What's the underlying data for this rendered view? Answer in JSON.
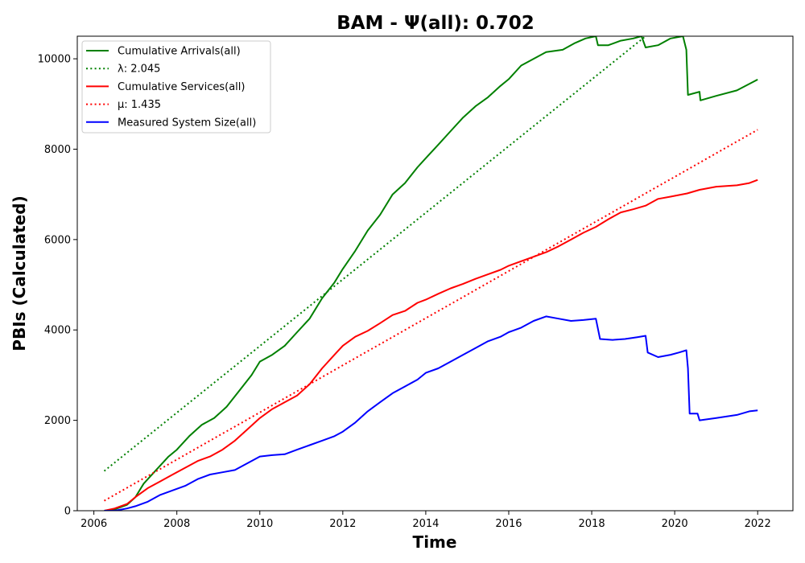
{
  "chart_data": {
    "type": "line",
    "title": "BAM -  Ψ(all): 0.702",
    "xlabel": "Time",
    "ylabel": "PBIs (Calculated)",
    "xlim": [
      2005.6,
      2022.85
    ],
    "ylim": [
      0,
      10500
    ],
    "xticks": [
      2006,
      2008,
      2010,
      2012,
      2014,
      2016,
      2018,
      2020,
      2022
    ],
    "yticks": [
      0,
      2000,
      4000,
      6000,
      8000,
      10000
    ],
    "xtick_labels": [
      "2006",
      "2008",
      "2010",
      "2012",
      "2014",
      "2016",
      "2018",
      "2020",
      "2022"
    ],
    "ytick_labels": [
      "0",
      "2000",
      "4000",
      "6000",
      "8000",
      "10000"
    ],
    "grid": false,
    "legend_position": "top-left",
    "series": [
      {
        "name": "Cumulative Arrivals(all)",
        "color": "#008000",
        "style": "solid",
        "points": [
          [
            2006.25,
            0
          ],
          [
            2006.5,
            30
          ],
          [
            2006.8,
            130
          ],
          [
            2007.0,
            300
          ],
          [
            2007.2,
            600
          ],
          [
            2007.5,
            900
          ],
          [
            2007.8,
            1200
          ],
          [
            2008.0,
            1350
          ],
          [
            2008.3,
            1650
          ],
          [
            2008.6,
            1900
          ],
          [
            2008.9,
            2050
          ],
          [
            2009.2,
            2300
          ],
          [
            2009.5,
            2650
          ],
          [
            2009.8,
            3000
          ],
          [
            2010.0,
            3300
          ],
          [
            2010.3,
            3450
          ],
          [
            2010.6,
            3650
          ],
          [
            2010.9,
            3950
          ],
          [
            2011.2,
            4250
          ],
          [
            2011.5,
            4700
          ],
          [
            2011.8,
            5050
          ],
          [
            2012.0,
            5350
          ],
          [
            2012.3,
            5750
          ],
          [
            2012.6,
            6200
          ],
          [
            2012.9,
            6550
          ],
          [
            2013.2,
            7000
          ],
          [
            2013.5,
            7250
          ],
          [
            2013.8,
            7600
          ],
          [
            2014.0,
            7800
          ],
          [
            2014.3,
            8100
          ],
          [
            2014.6,
            8400
          ],
          [
            2014.9,
            8700
          ],
          [
            2015.2,
            8950
          ],
          [
            2015.5,
            9150
          ],
          [
            2015.8,
            9400
          ],
          [
            2016.0,
            9550
          ],
          [
            2016.3,
            9850
          ],
          [
            2016.6,
            10000
          ],
          [
            2016.9,
            10150
          ],
          [
            2017.3,
            10200
          ],
          [
            2017.6,
            10350
          ],
          [
            2017.85,
            10450
          ],
          [
            2018.1,
            10500
          ],
          [
            2018.15,
            10300
          ],
          [
            2018.4,
            10300
          ],
          [
            2018.7,
            10400
          ],
          [
            2019.0,
            10450
          ],
          [
            2019.2,
            10500
          ],
          [
            2019.3,
            10250
          ],
          [
            2019.6,
            10300
          ],
          [
            2019.9,
            10450
          ],
          [
            2020.2,
            10500
          ],
          [
            2020.28,
            10200
          ],
          [
            2020.32,
            9200
          ],
          [
            2020.6,
            9270
          ],
          [
            2020.62,
            9080
          ],
          [
            2021.0,
            9180
          ],
          [
            2021.5,
            9300
          ],
          [
            2022.0,
            9540
          ]
        ]
      },
      {
        "name": "λ: 2.045",
        "color": "#008000",
        "style": "dotted",
        "points": [
          [
            2006.25,
            880
          ],
          [
            2019.3,
            10500
          ]
        ]
      },
      {
        "name": "Cumulative Services(all)",
        "color": "#ff0000",
        "style": "solid",
        "points": [
          [
            2006.25,
            0
          ],
          [
            2006.5,
            50
          ],
          [
            2006.8,
            150
          ],
          [
            2007.0,
            300
          ],
          [
            2007.3,
            500
          ],
          [
            2007.6,
            650
          ],
          [
            2007.9,
            800
          ],
          [
            2008.2,
            950
          ],
          [
            2008.5,
            1100
          ],
          [
            2008.8,
            1200
          ],
          [
            2009.1,
            1350
          ],
          [
            2009.4,
            1550
          ],
          [
            2009.7,
            1800
          ],
          [
            2010.0,
            2050
          ],
          [
            2010.3,
            2250
          ],
          [
            2010.6,
            2400
          ],
          [
            2010.9,
            2550
          ],
          [
            2011.2,
            2800
          ],
          [
            2011.5,
            3150
          ],
          [
            2011.8,
            3450
          ],
          [
            2012.0,
            3650
          ],
          [
            2012.3,
            3850
          ],
          [
            2012.6,
            3980
          ],
          [
            2012.9,
            4150
          ],
          [
            2013.2,
            4330
          ],
          [
            2013.5,
            4420
          ],
          [
            2013.8,
            4600
          ],
          [
            2014.0,
            4670
          ],
          [
            2014.3,
            4800
          ],
          [
            2014.6,
            4920
          ],
          [
            2014.9,
            5020
          ],
          [
            2015.2,
            5130
          ],
          [
            2015.5,
            5230
          ],
          [
            2015.8,
            5330
          ],
          [
            2016.0,
            5420
          ],
          [
            2016.3,
            5520
          ],
          [
            2016.6,
            5620
          ],
          [
            2016.9,
            5720
          ],
          [
            2017.2,
            5850
          ],
          [
            2017.5,
            6000
          ],
          [
            2017.8,
            6150
          ],
          [
            2018.1,
            6280
          ],
          [
            2018.4,
            6450
          ],
          [
            2018.7,
            6600
          ],
          [
            2019.0,
            6670
          ],
          [
            2019.3,
            6750
          ],
          [
            2019.6,
            6900
          ],
          [
            2019.9,
            6950
          ],
          [
            2020.3,
            7020
          ],
          [
            2020.6,
            7100
          ],
          [
            2021.0,
            7170
          ],
          [
            2021.5,
            7200
          ],
          [
            2021.8,
            7250
          ],
          [
            2022.0,
            7320
          ]
        ]
      },
      {
        "name": "μ: 1.435",
        "color": "#ff0000",
        "style": "dotted",
        "points": [
          [
            2006.25,
            220
          ],
          [
            2022.0,
            8430
          ]
        ]
      },
      {
        "name": "Measured System Size(all)",
        "color": "#0000ff",
        "style": "solid",
        "points": [
          [
            2006.25,
            0
          ],
          [
            2006.5,
            0
          ],
          [
            2006.8,
            50
          ],
          [
            2007.0,
            100
          ],
          [
            2007.3,
            200
          ],
          [
            2007.6,
            350
          ],
          [
            2007.9,
            450
          ],
          [
            2008.2,
            550
          ],
          [
            2008.5,
            700
          ],
          [
            2008.8,
            800
          ],
          [
            2009.1,
            850
          ],
          [
            2009.4,
            900
          ],
          [
            2009.7,
            1050
          ],
          [
            2010.0,
            1200
          ],
          [
            2010.3,
            1230
          ],
          [
            2010.6,
            1250
          ],
          [
            2010.9,
            1350
          ],
          [
            2011.2,
            1450
          ],
          [
            2011.5,
            1550
          ],
          [
            2011.8,
            1650
          ],
          [
            2012.0,
            1750
          ],
          [
            2012.3,
            1950
          ],
          [
            2012.6,
            2200
          ],
          [
            2012.9,
            2400
          ],
          [
            2013.2,
            2600
          ],
          [
            2013.5,
            2750
          ],
          [
            2013.8,
            2900
          ],
          [
            2014.0,
            3050
          ],
          [
            2014.3,
            3150
          ],
          [
            2014.6,
            3300
          ],
          [
            2014.9,
            3450
          ],
          [
            2015.2,
            3600
          ],
          [
            2015.5,
            3750
          ],
          [
            2015.8,
            3850
          ],
          [
            2016.0,
            3950
          ],
          [
            2016.3,
            4050
          ],
          [
            2016.6,
            4200
          ],
          [
            2016.9,
            4300
          ],
          [
            2017.2,
            4250
          ],
          [
            2017.5,
            4200
          ],
          [
            2017.8,
            4220
          ],
          [
            2018.1,
            4250
          ],
          [
            2018.2,
            3800
          ],
          [
            2018.5,
            3780
          ],
          [
            2018.8,
            3800
          ],
          [
            2019.1,
            3840
          ],
          [
            2019.3,
            3870
          ],
          [
            2019.35,
            3500
          ],
          [
            2019.6,
            3400
          ],
          [
            2019.9,
            3450
          ],
          [
            2020.1,
            3500
          ],
          [
            2020.28,
            3550
          ],
          [
            2020.32,
            3150
          ],
          [
            2020.36,
            2150
          ],
          [
            2020.55,
            2150
          ],
          [
            2020.6,
            2000
          ],
          [
            2021.0,
            2050
          ],
          [
            2021.5,
            2120
          ],
          [
            2021.8,
            2200
          ],
          [
            2022.0,
            2220
          ]
        ]
      }
    ]
  }
}
